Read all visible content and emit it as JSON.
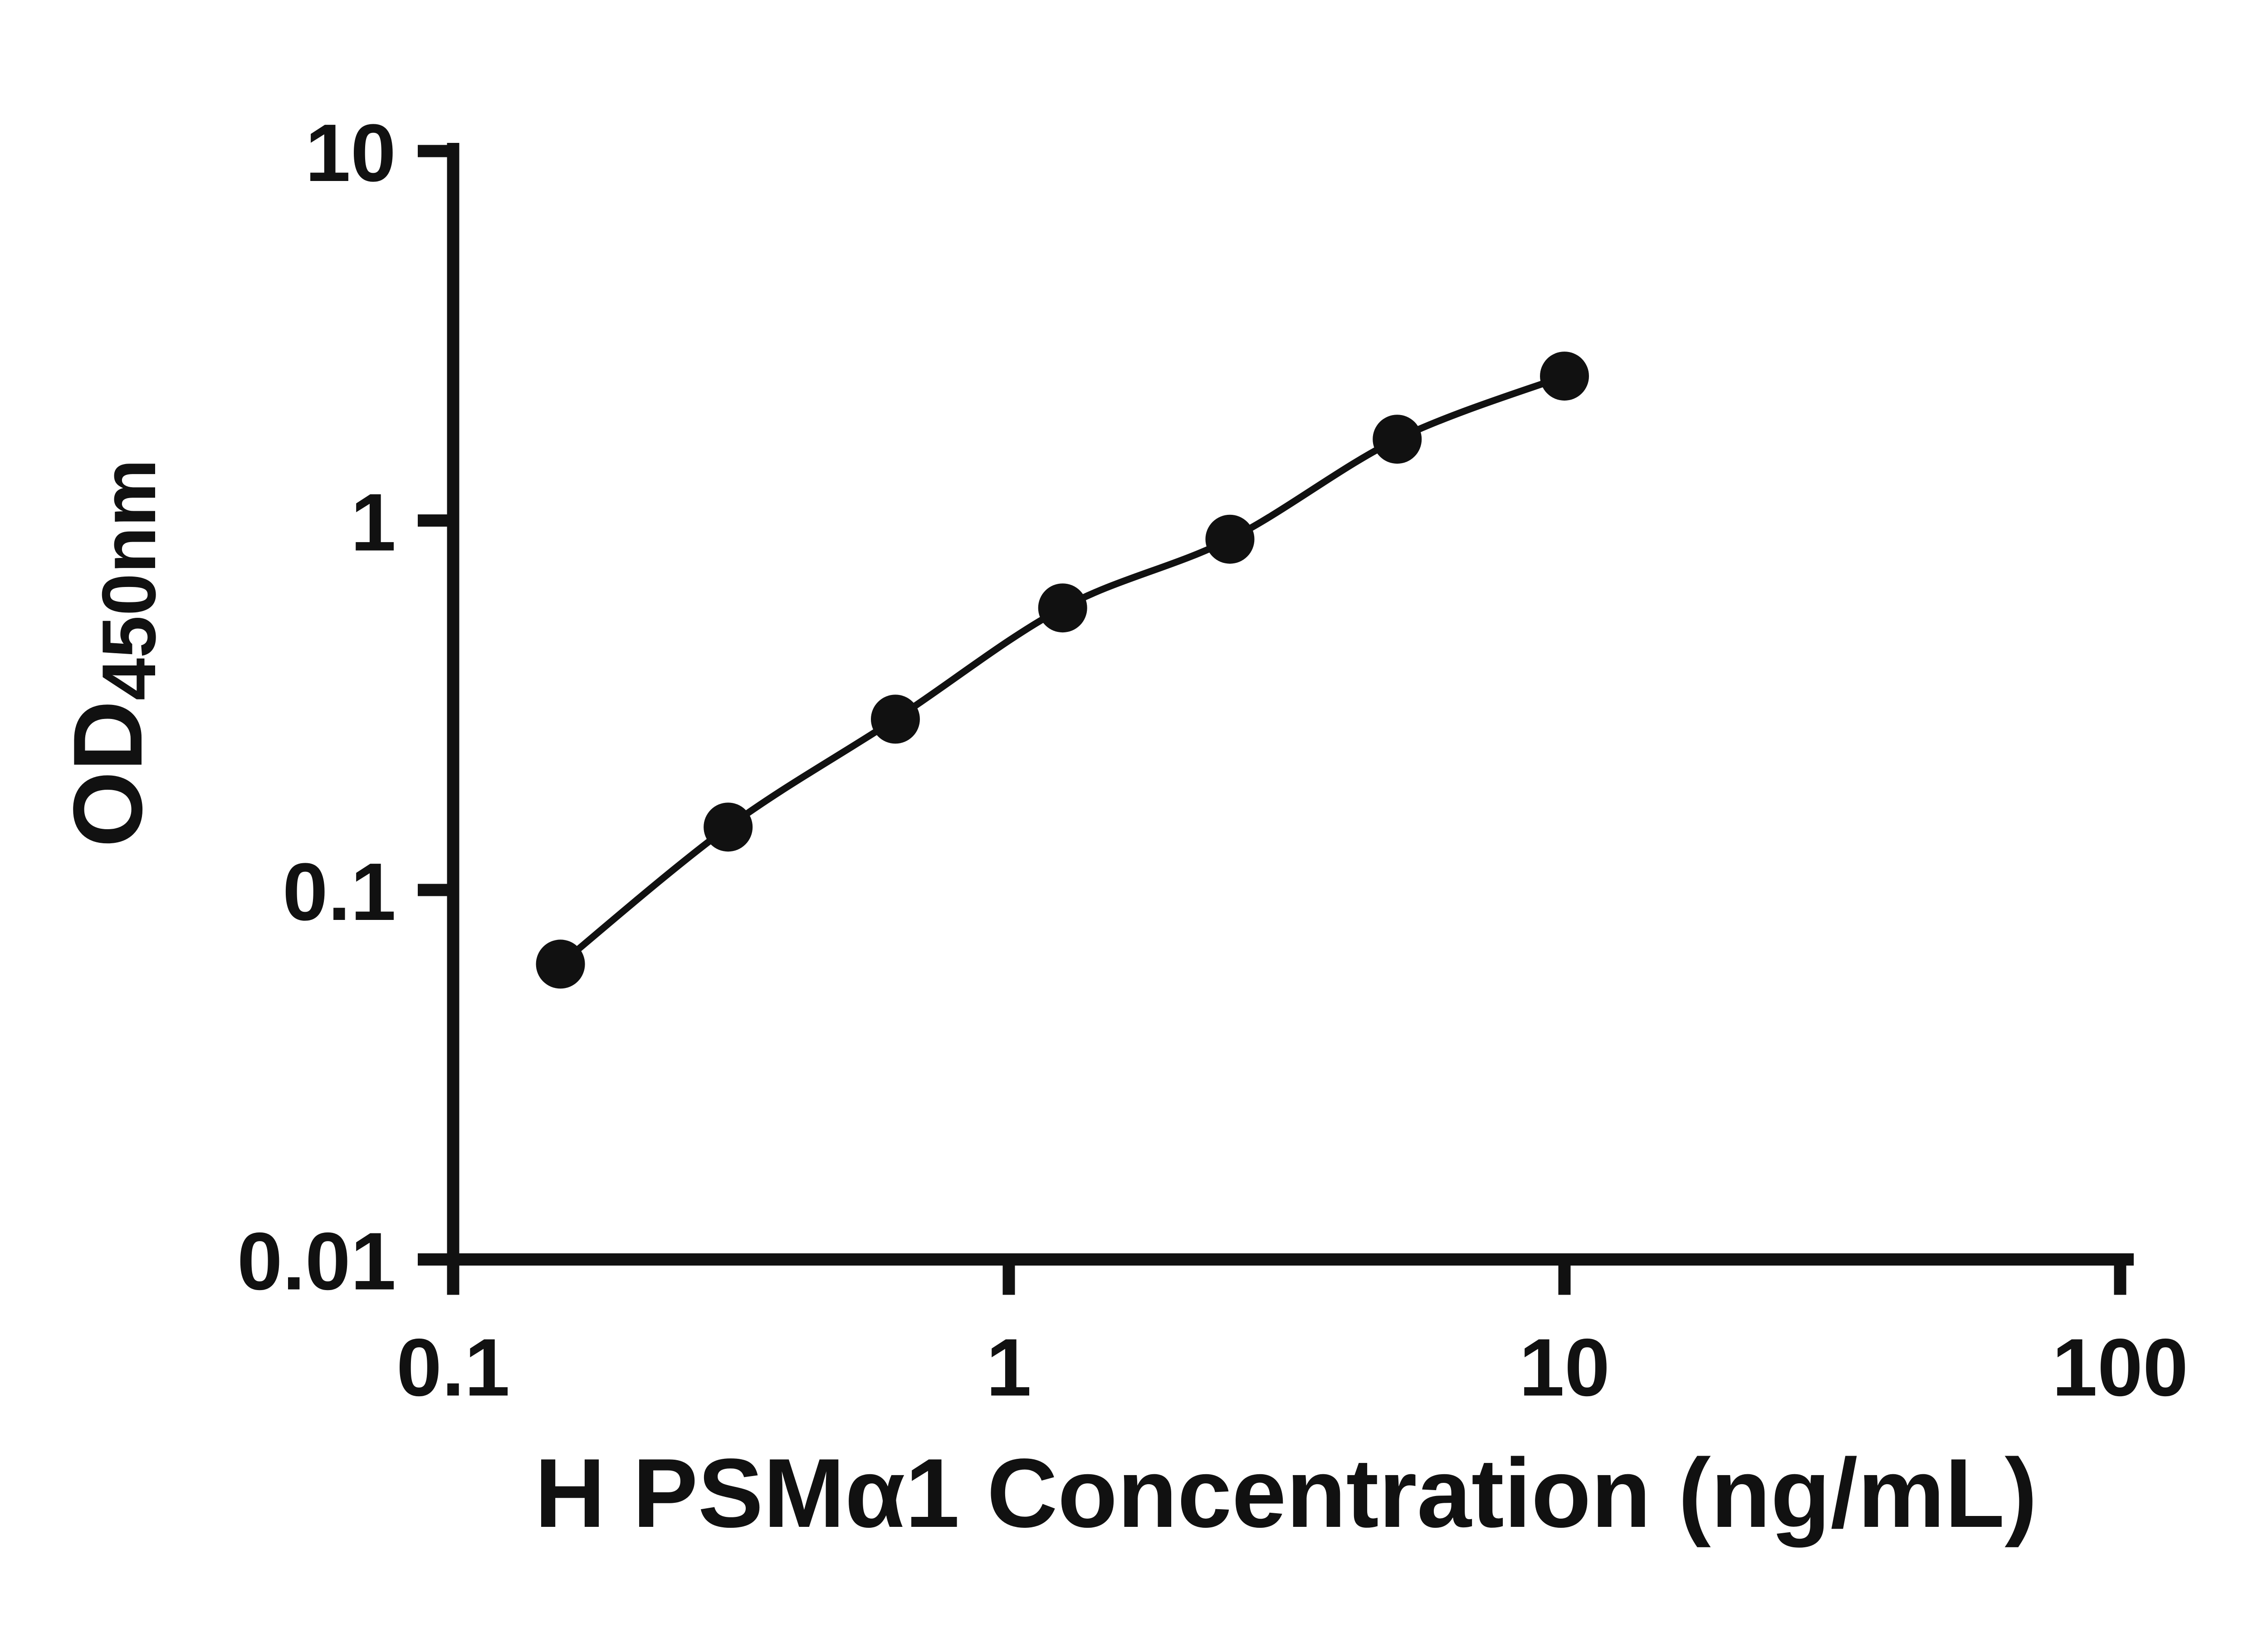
{
  "figure": {
    "background_color": "#ffffff",
    "description": "ELISA standard curve, log-log scatter plot with smooth fitted line"
  },
  "chart_data": {
    "type": "scatter",
    "title": "",
    "xlabel": "H PSMα1 Concentration (ng/mL)",
    "ylabel_main": "OD",
    "ylabel_sub": "450nm",
    "xscale": "log",
    "yscale": "log",
    "xlim": [
      0.1,
      100
    ],
    "ylim": [
      0.01,
      10
    ],
    "x": [
      0.156,
      0.3125,
      0.625,
      1.25,
      2.5,
      5,
      10
    ],
    "y": [
      0.063,
      0.148,
      0.29,
      0.58,
      0.89,
      1.66,
      2.46
    ],
    "x_ticks": [
      {
        "value": 0.1,
        "label": "0.1"
      },
      {
        "value": 1,
        "label": "1"
      },
      {
        "value": 10,
        "label": "10"
      },
      {
        "value": 100,
        "label": "100"
      }
    ],
    "y_ticks": [
      {
        "value": 0.01,
        "label": "0.01"
      },
      {
        "value": 0.1,
        "label": "0.1"
      },
      {
        "value": 1,
        "label": "1"
      },
      {
        "value": 10,
        "label": "10"
      }
    ],
    "grid": false,
    "legend": "none",
    "marker_color": "#111111",
    "line_color": "#111111",
    "axis_color": "#111111"
  }
}
